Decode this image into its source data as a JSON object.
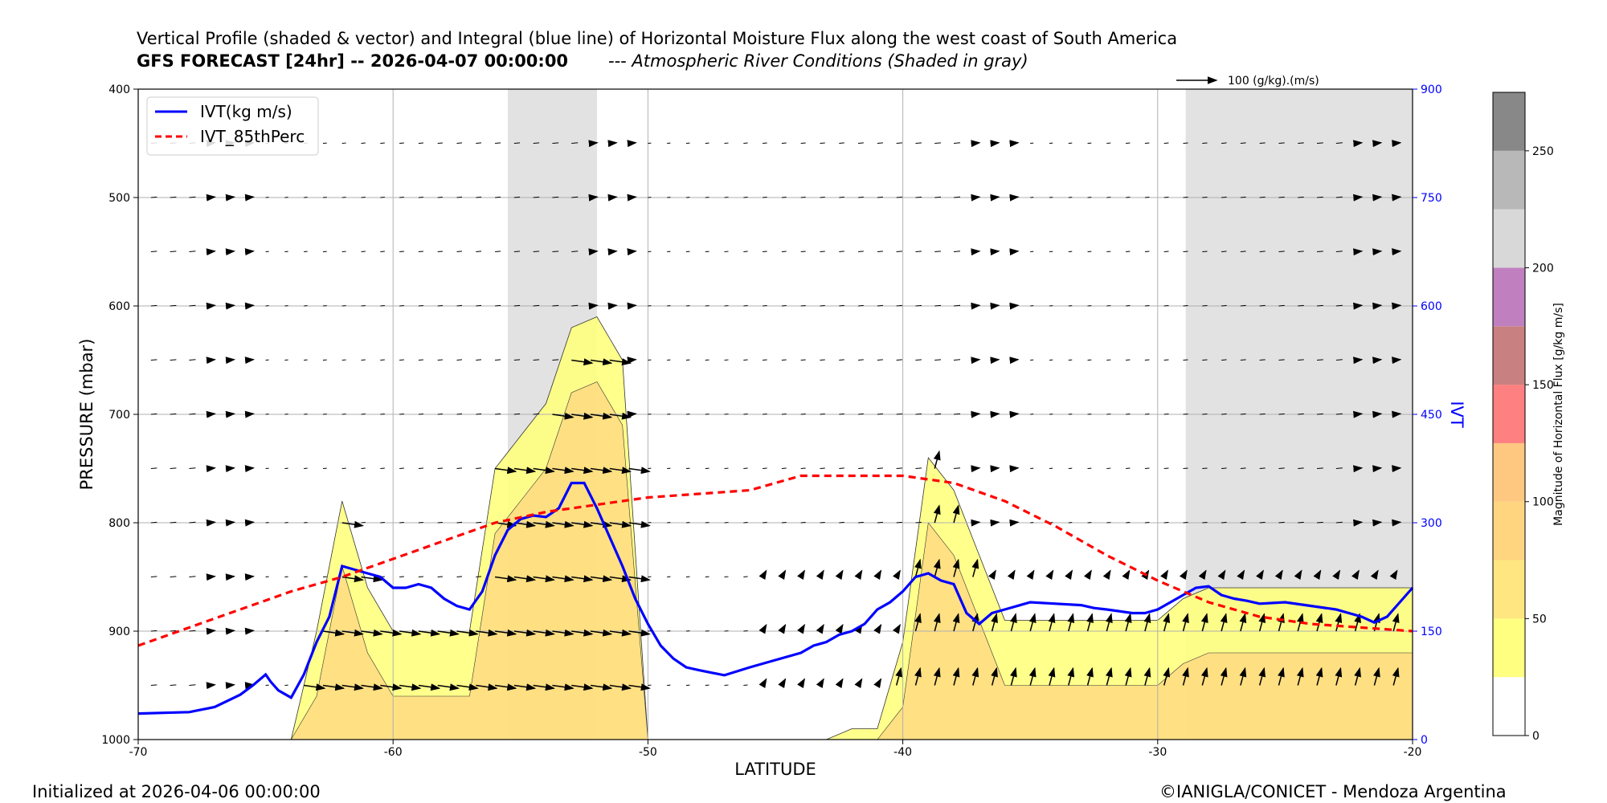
{
  "title": {
    "line1": "Vertical Profile (shaded & vector) and Integral (blue line) of Horizontal Moisture Flux along the west coast of South America",
    "line2": "GFS FORECAST [24hr] -- 2026-04-07 00:00:00",
    "line2_note": "--- Atmospheric River Conditions (Shaded in gray)"
  },
  "footer": {
    "initialized": "Initialized at 2026-04-06 00:00:00",
    "credit": "©IANIGLA/CONICET - Mendoza Argentina"
  },
  "colors": {
    "ivt": "#0000ff",
    "perc": "#ff0000",
    "ar_shade": "#e2e2e2"
  },
  "chart_data": {
    "type": "line",
    "x_label": "LATITUDE",
    "y_label": "PRESSURE (mbar)",
    "y2_label": "IVT",
    "colorbar_label": "Magnitude of Horizontal Flux [g/kg m/s]",
    "vector_key": "100 (g/kg).(m/s)",
    "xlim": [
      -70,
      -20
    ],
    "ylim": [
      1000,
      400
    ],
    "y2lim": [
      0,
      900
    ],
    "x_ticks": [
      -70,
      -60,
      -50,
      -40,
      -30,
      -20
    ],
    "y_ticks": [
      400,
      500,
      600,
      700,
      800,
      900,
      1000
    ],
    "y2_ticks": [
      0,
      150,
      300,
      450,
      600,
      750,
      900
    ],
    "ar_regions": [
      [
        -55.5,
        -52.0
      ],
      [
        -28.9,
        -20.0
      ]
    ],
    "colorbar": {
      "ticks": [
        0,
        50,
        100,
        150,
        200,
        250
      ],
      "levels": [
        0,
        25,
        50,
        75,
        100,
        125,
        150,
        175,
        200,
        225,
        250,
        275
      ],
      "colors": [
        "#ffffff",
        "#ffff80",
        "#ffe680",
        "#ffd580",
        "#ffc880",
        "#ff8080",
        "#c88080",
        "#c080c0",
        "#d8d8d8",
        "#b8b8b8",
        "#888888"
      ]
    },
    "legend": [
      "IVT(kg m/s)",
      "IVT_85thPerc"
    ],
    "series": [
      {
        "name": "IVT(kg m/s)",
        "x": [
          -70,
          -69,
          -68,
          -67,
          -66,
          -65.5,
          -65,
          -64.8,
          -64.5,
          -64.2,
          -64,
          -63.5,
          -63,
          -62.5,
          -62,
          -61.5,
          -61,
          -60.5,
          -60,
          -59.5,
          -59,
          -58.5,
          -58,
          -57.5,
          -57,
          -56.5,
          -56,
          -55.5,
          -55,
          -54.5,
          -54,
          -53.5,
          -53,
          -52.5,
          -52,
          -51.5,
          -51,
          -50.5,
          -50,
          -49.5,
          -49,
          -48.5,
          -48,
          -47,
          -46,
          -45,
          -44,
          -43.5,
          -43,
          -42.5,
          -42,
          -41.5,
          -41,
          -40.5,
          -40,
          -39.5,
          -39,
          -38.5,
          -38,
          -37.5,
          -37,
          -36.5,
          -36,
          -35,
          -34,
          -33,
          -32.5,
          -32,
          -31,
          -30.5,
          -30,
          -29.5,
          -29,
          -28.5,
          -28,
          -27.5,
          -27,
          -26.5,
          -26,
          -25,
          -24,
          -23,
          -22,
          -21.5,
          -21,
          -20.5,
          -20
        ],
        "values": [
          36,
          37,
          38,
          45,
          62,
          75,
          90,
          80,
          68,
          62,
          58,
          90,
          135,
          170,
          240,
          235,
          230,
          225,
          210,
          210,
          215,
          210,
          195,
          185,
          180,
          205,
          255,
          290,
          305,
          310,
          308,
          320,
          355,
          355,
          320,
          280,
          240,
          195,
          160,
          130,
          112,
          100,
          96,
          89,
          100,
          110,
          120,
          130,
          135,
          145,
          150,
          160,
          180,
          190,
          205,
          225,
          230,
          220,
          215,
          175,
          160,
          175,
          180,
          190,
          188,
          186,
          182,
          180,
          175,
          175,
          180,
          190,
          200,
          210,
          212,
          200,
          195,
          192,
          188,
          190,
          185,
          180,
          170,
          162,
          170,
          190,
          210
        ]
      },
      {
        "name": "IVT_85thPerc",
        "x": [
          -70,
          -68,
          -66,
          -64,
          -62,
          -60,
          -58,
          -56,
          -54,
          -52,
          -50,
          -48,
          -46,
          -44,
          -42,
          -40,
          -38,
          -36,
          -34,
          -32,
          -30,
          -28,
          -26,
          -24,
          -22,
          -20
        ],
        "values": [
          130,
          155,
          180,
          205,
          225,
          250,
          275,
          300,
          315,
          325,
          335,
          340,
          345,
          365,
          365,
          365,
          355,
          330,
          295,
          255,
          220,
          190,
          170,
          160,
          155,
          150
        ]
      }
    ],
    "flux_contour": {
      "x": [
        -70,
        -68,
        -66,
        -65,
        -64,
        -63,
        -62,
        -61,
        -60,
        -59,
        -58,
        -57,
        -56,
        -55,
        -54,
        -53,
        -52,
        -51,
        -50,
        -49,
        -48,
        -46,
        -44,
        -43,
        -42,
        -41,
        -40,
        -39,
        -38,
        -37,
        -36,
        -34,
        -32,
        -31,
        -30,
        -29,
        -28,
        -26,
        -24,
        -22,
        -20
      ],
      "top_pressure": [
        1000,
        1000,
        1000,
        1000,
        1000,
        900,
        780,
        860,
        900,
        900,
        900,
        900,
        750,
        720,
        690,
        620,
        610,
        650,
        1000,
        1000,
        1000,
        1000,
        1000,
        1000,
        990,
        990,
        910,
        740,
        770,
        830,
        890,
        890,
        890,
        890,
        890,
        870,
        860,
        860,
        860,
        860,
        860
      ]
    }
  }
}
